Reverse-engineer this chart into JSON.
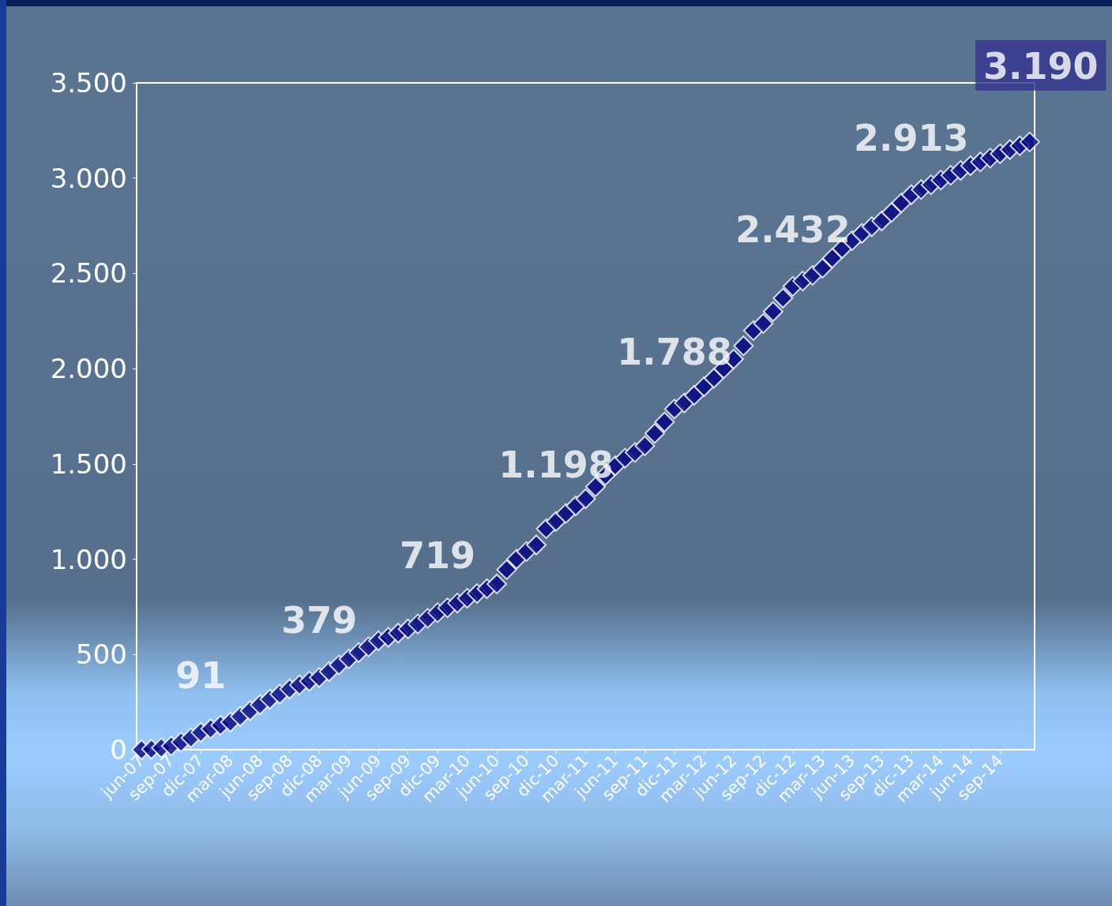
{
  "chart_data": {
    "type": "scatter",
    "categories": [
      "jun-07",
      null,
      null,
      "sep-07",
      null,
      null,
      "dic-07",
      null,
      null,
      "mar-08",
      null,
      null,
      "jun-08",
      null,
      null,
      "sep-08",
      null,
      null,
      "dic-08",
      null,
      null,
      "mar-09",
      null,
      null,
      "jun-09",
      null,
      null,
      "sep-09",
      null,
      null,
      "dic-09",
      null,
      null,
      "mar-10",
      null,
      null,
      "jun-10",
      null,
      null,
      "sep-10",
      null,
      null,
      "dic-10",
      null,
      null,
      "mar-11",
      null,
      null,
      "jun-11",
      null,
      null,
      "sep-11",
      null,
      null,
      "dic-11",
      null,
      null,
      "mar-12",
      null,
      null,
      "jun-12",
      null,
      null,
      "sep-12",
      null,
      null,
      "dic-12",
      null,
      null,
      "mar-13",
      null,
      null,
      "jun-13",
      null,
      null,
      "sep-13",
      null,
      null,
      "dic-13",
      null,
      null,
      "mar-14",
      null,
      null,
      "jun-14",
      null,
      null,
      "sep-14",
      null,
      null,
      null
    ],
    "series": [
      {
        "color": "#000080",
        "values": [
          0,
          3,
          10,
          20,
          40,
          62,
          91,
          110,
          128,
          145,
          175,
          205,
          236,
          265,
          292,
          319,
          340,
          360,
          379,
          410,
          445,
          476,
          510,
          540,
          572,
          590,
          612,
          634,
          660,
          690,
          719,
          745,
          770,
          795,
          820,
          845,
          870,
          945,
          1000,
          1040,
          1075,
          1160,
          1198,
          1240,
          1280,
          1317,
          1380,
          1440,
          1490,
          1530,
          1560,
          1595,
          1660,
          1720,
          1788,
          1820,
          1860,
          1905,
          1950,
          2000,
          2050,
          2120,
          2200,
          2237,
          2300,
          2370,
          2432,
          2460,
          2490,
          2527,
          2580,
          2630,
          2672,
          2710,
          2745,
          2775,
          2820,
          2870,
          2913,
          2940,
          2965,
          2990,
          3015,
          3040,
          3065,
          3085,
          3105,
          3128,
          3150,
          3170,
          3190
        ],
        "value_labels": [
          null,
          null,
          null,
          null,
          null,
          null,
          "91",
          null,
          null,
          null,
          null,
          null,
          null,
          null,
          null,
          null,
          null,
          null,
          "379",
          null,
          null,
          null,
          null,
          null,
          null,
          null,
          null,
          null,
          null,
          null,
          "719",
          null,
          null,
          null,
          null,
          null,
          null,
          null,
          null,
          null,
          null,
          null,
          "1.198",
          null,
          null,
          null,
          null,
          null,
          null,
          null,
          null,
          null,
          null,
          null,
          "1.788",
          null,
          null,
          null,
          null,
          null,
          null,
          null,
          null,
          null,
          null,
          null,
          "2.432",
          null,
          null,
          null,
          null,
          null,
          null,
          null,
          null,
          null,
          null,
          null,
          "2.913",
          null,
          null,
          null,
          null,
          null,
          null,
          null,
          null,
          null,
          null,
          null,
          "3.190"
        ]
      }
    ],
    "ylim": [
      0,
      3500
    ],
    "yticks": [
      0,
      500,
      {
        "value": 1000,
        "label": "1.000"
      },
      {
        "value": 1500,
        "label": "1.500"
      },
      {
        "value": 2000,
        "label": "2.000"
      },
      {
        "value": 2500,
        "label": "2.500"
      },
      {
        "value": 3000,
        "label": "3.000"
      },
      {
        "value": 3500,
        "label": "3.500"
      }
    ],
    "marker": "diamond",
    "grid": false
  }
}
